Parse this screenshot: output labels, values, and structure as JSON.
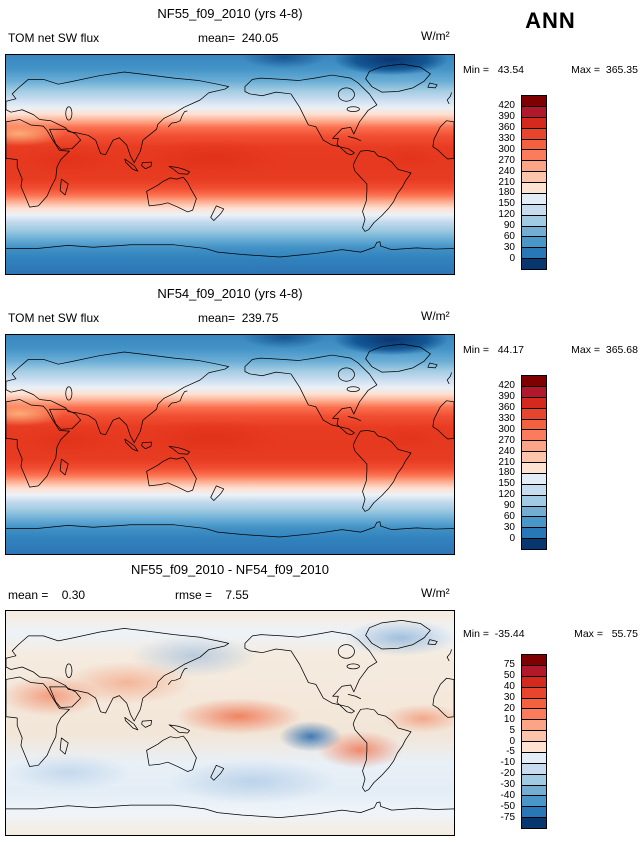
{
  "season_label": "ANN",
  "panels": [
    {
      "title": "NF55_f09_2010 (yrs 4-8)",
      "var_label": "TOM net SW flux",
      "mean_text": "mean=  240.05",
      "min_text": "Min =   43.54",
      "max_text": "Max =  365.35",
      "units": "W/m²"
    },
    {
      "title": "NF54_f09_2010 (yrs 4-8)",
      "var_label": "TOM net SW flux",
      "mean_text": "mean=  239.75",
      "min_text": "Min =   44.17",
      "max_text": "Max =  365.68",
      "units": "W/m²"
    },
    {
      "title": "NF55_f09_2010 - NF54_f09_2010",
      "mean_text": "mean =    0.30",
      "rmse_text": "rmse =    7.55",
      "min_text": "Min =  -35.44",
      "max_text": "Max =   55.75",
      "units": "W/m²"
    }
  ],
  "colorbars": {
    "flux": {
      "labels": [
        "420",
        "390",
        "360",
        "330",
        "300",
        "270",
        "240",
        "210",
        "180",
        "150",
        "120",
        "90",
        "60",
        "30",
        "0"
      ],
      "colors": [
        "#7f0000",
        "#b2182b",
        "#d6291e",
        "#e8452e",
        "#f4613f",
        "#fb7c5c",
        "#fca486",
        "#fcc5ab",
        "#fee3d3",
        "#e2edf8",
        "#c7dcef",
        "#a0cbe2",
        "#73add1",
        "#4997c8",
        "#2878b8",
        "#08366e"
      ]
    },
    "diff": {
      "labels": [
        "75",
        "50",
        "40",
        "30",
        "20",
        "10",
        "5",
        "0",
        "-5",
        "-10",
        "-20",
        "-30",
        "-40",
        "-50",
        "-75"
      ],
      "colors": [
        "#7f0000",
        "#b2182b",
        "#d6291e",
        "#e8452e",
        "#f4613f",
        "#fb7c5c",
        "#fca486",
        "#fcc5ab",
        "#fee3d3",
        "#e2edf8",
        "#c7dcef",
        "#a0cbe2",
        "#73add1",
        "#4997c8",
        "#2878b8",
        "#08366e"
      ]
    }
  },
  "chart_data": [
    {
      "type": "heatmap",
      "subtype": "global_lat_lon_map",
      "title": "NF55_f09_2010 (yrs 4-8)",
      "variable": "TOM net SW flux",
      "season": "ANN",
      "units": "W/m²",
      "stats": {
        "mean": 240.05,
        "min": 43.54,
        "max": 365.35
      },
      "colorbar_levels": [
        420,
        390,
        360,
        330,
        300,
        270,
        240,
        210,
        180,
        150,
        120,
        90,
        60,
        30,
        0
      ],
      "legend_position": "right",
      "pattern": "values >300 W/m² (red-orange) across tropics ~30N-30S, ~180-240 (cream) in midlatitudes, <120 (blue) poleward of 55 deg, darkest blue over Arctic"
    },
    {
      "type": "heatmap",
      "subtype": "global_lat_lon_map",
      "title": "NF54_f09_2010 (yrs 4-8)",
      "variable": "TOM net SW flux",
      "season": "ANN",
      "units": "W/m²",
      "stats": {
        "mean": 239.75,
        "min": 44.17,
        "max": 365.68
      },
      "colorbar_levels": [
        420,
        390,
        360,
        330,
        300,
        270,
        240,
        210,
        180,
        150,
        120,
        90,
        60,
        30,
        0
      ],
      "legend_position": "right",
      "pattern": "nearly identical zonal structure to NF55 case"
    },
    {
      "type": "heatmap",
      "subtype": "global_difference_map",
      "title": "NF55_f09_2010 - NF54_f09_2010",
      "variable": "TOM net SW flux difference",
      "season": "ANN",
      "units": "W/m²",
      "stats": {
        "mean": 0.3,
        "rmse": 7.55,
        "min": -35.44,
        "max": 55.75
      },
      "colorbar_levels": [
        75,
        50,
        40,
        30,
        20,
        10,
        5,
        0,
        -5,
        -10,
        -20,
        -30,
        -40,
        -50,
        -75
      ],
      "legend_position": "right",
      "pattern": "mostly within ±5 W/m²; positive (red) anomalies over tropical land and central Pacific, strong negative (blue) blob in east equatorial Pacific, weak negative over N Pacific, N Atlantic and Southern Ocean"
    }
  ]
}
